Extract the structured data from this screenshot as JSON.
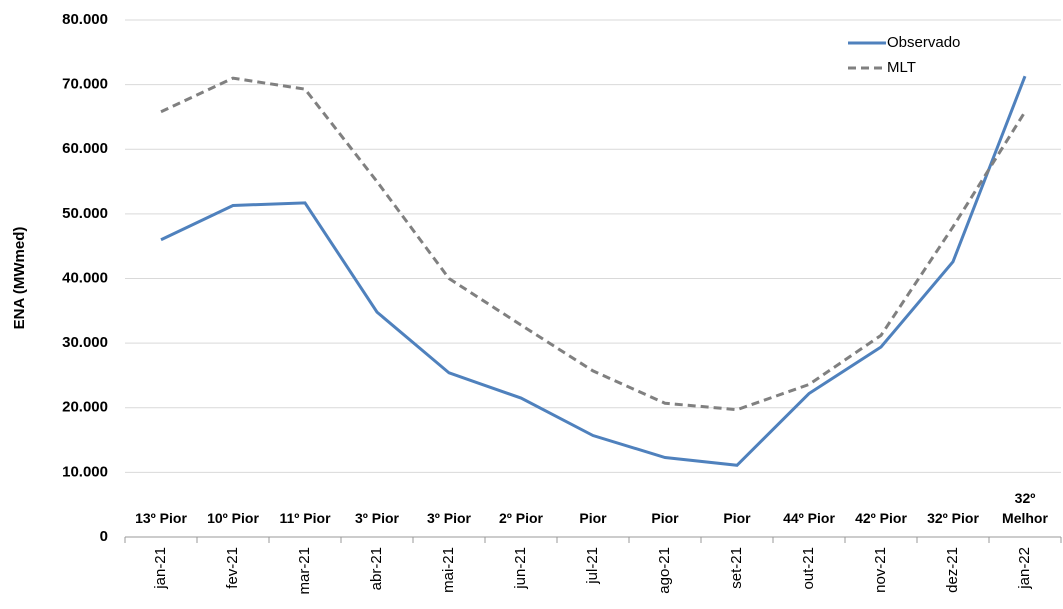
{
  "chart_data": {
    "type": "line",
    "y_label": "ENA (MWmed)",
    "categories": [
      "jan-21",
      "fev-21",
      "mar-21",
      "abr-21",
      "mai-21",
      "jun-21",
      "jul-21",
      "ago-21",
      "set-21",
      "out-21",
      "nov-21",
      "dez-21",
      "jan-22"
    ],
    "rank_labels": [
      "13º Pior",
      "10º Pior",
      "11º Pior",
      "3º Pior",
      "3º Pior",
      "2º Pior",
      "Pior",
      "Pior",
      "Pior",
      "44º Pior",
      "42º Pior",
      "32º Pior",
      "32º Melhor"
    ],
    "series": [
      {
        "name": "Observado",
        "color": "#4f81bd",
        "dash": false,
        "values": [
          46000,
          51300,
          51700,
          34800,
          25400,
          21500,
          15700,
          12300,
          11100,
          22200,
          29400,
          42600,
          71300
        ]
      },
      {
        "name": "MLT",
        "color": "#808080",
        "dash": true,
        "values": [
          65800,
          71000,
          69300,
          55000,
          40000,
          32800,
          25700,
          20700,
          19700,
          23600,
          31200,
          48000,
          65800
        ]
      }
    ],
    "ylim": [
      0,
      80000
    ],
    "yticks": [
      0,
      {
        "value": 10000,
        "label": "10.000"
      },
      {
        "value": 20000,
        "label": "20.000"
      },
      {
        "value": 30000,
        "label": "30.000"
      },
      {
        "value": 40000,
        "label": "40.000"
      },
      {
        "value": 50000,
        "label": "50.000"
      },
      {
        "value": 60000,
        "label": "60.000"
      },
      {
        "value": 70000,
        "label": "70.000"
      },
      {
        "value": 80000,
        "label": "80.000"
      }
    ],
    "grid": true,
    "legend": "top-right"
  }
}
